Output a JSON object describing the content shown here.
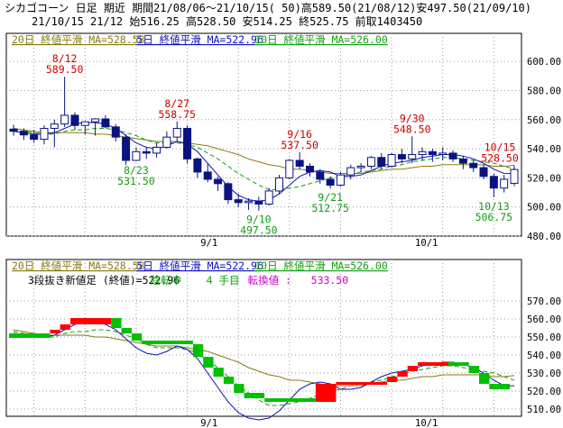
{
  "header": {
    "line1": "シカゴコーン 日足 期近 期間21/08/06～21/10/15( 50)高589.50(21/08/12)安497.50(21/09/10)",
    "line2": "21/10/15 21/12 始516.25 高528.50 安514.25 終525.75 前取1403450"
  },
  "colors": {
    "up_candle": "#ffffff",
    "down_candle": "#0a1480",
    "ma20": "#8a7a10",
    "ma5": "#1010c0",
    "ma10": "#10a010",
    "high_label": "#cc0000",
    "low_label": "#10a010",
    "brick_up": "#ff0000",
    "brick_down": "#00c000",
    "grid": "#9a9a9a",
    "legend_turn": "#cc00cc"
  },
  "chart_data": [
    {
      "type": "candlestick",
      "legend": [
        {
          "text": "20日 終値平滑 MA=528.58",
          "color": "#8a7a10"
        },
        {
          "text": "5日 終値平滑 MA=522.96",
          "color": "#1010c0"
        },
        {
          "text": "10日 終値平滑 MA=526.00",
          "color": "#10a010"
        }
      ],
      "ylim": [
        480,
        610
      ],
      "yticks": [
        "480.00",
        "500.00",
        "520.00",
        "540.00",
        "560.00",
        "580.00",
        "600.00"
      ],
      "ytick_values": [
        480,
        500,
        520,
        540,
        560,
        580,
        600
      ],
      "xticks": [
        {
          "index": 19,
          "label": "9/1"
        },
        {
          "index": 40,
          "label": "10/1"
        }
      ],
      "candles": [
        [
          553.5,
          556.5,
          549.0,
          552.0
        ],
        [
          552.0,
          554.0,
          546.0,
          549.5
        ],
        [
          549.5,
          553.0,
          544.0,
          546.5
        ],
        [
          546.5,
          556.0,
          543.0,
          554.0
        ],
        [
          554.0,
          560.0,
          541.0,
          557.0
        ],
        [
          557.0,
          589.5,
          555.0,
          563.0
        ],
        [
          563.0,
          565.0,
          553.0,
          556.0
        ],
        [
          556.0,
          559.0,
          550.0,
          558.5
        ],
        [
          558.5,
          561.0,
          549.0,
          560.5
        ],
        [
          560.5,
          563.0,
          554.0,
          555.0
        ],
        [
          555.0,
          557.0,
          545.0,
          548.0
        ],
        [
          548.0,
          550.0,
          529.0,
          532.0
        ],
        [
          532.0,
          541.0,
          531.5,
          538.0
        ],
        [
          538.0,
          541.0,
          533.0,
          537.0
        ],
        [
          537.0,
          544.0,
          534.0,
          541.0
        ],
        [
          541.0,
          552.0,
          540.0,
          548.0
        ],
        [
          548.0,
          558.75,
          545.0,
          554.0
        ],
        [
          554.0,
          556.0,
          530.0,
          533.0
        ],
        [
          533.0,
          534.0,
          520.0,
          524.0
        ],
        [
          524.0,
          530.0,
          517.0,
          519.0
        ],
        [
          519.0,
          521.0,
          511.0,
          516.0
        ],
        [
          516.0,
          517.0,
          502.0,
          505.0
        ],
        [
          505.0,
          509.0,
          500.0,
          503.0
        ],
        [
          503.0,
          506.0,
          498.0,
          504.0
        ],
        [
          504.0,
          507.0,
          497.5,
          502.0
        ],
        [
          502.0,
          513.0,
          501.0,
          511.0
        ],
        [
          511.0,
          522.0,
          509.0,
          520.0
        ],
        [
          520.0,
          533.0,
          519.0,
          532.0
        ],
        [
          532.0,
          537.5,
          526.0,
          528.0
        ],
        [
          528.0,
          530.0,
          521.0,
          524.0
        ],
        [
          524.0,
          526.0,
          516.0,
          519.0
        ],
        [
          519.0,
          521.0,
          512.75,
          515.0
        ],
        [
          515.0,
          524.0,
          514.0,
          522.0
        ],
        [
          522.0,
          529.0,
          519.0,
          527.0
        ],
        [
          527.0,
          530.0,
          524.0,
          528.0
        ],
        [
          528.0,
          535.0,
          526.0,
          534.0
        ],
        [
          534.0,
          537.0,
          526.0,
          528.0
        ],
        [
          528.0,
          537.0,
          527.0,
          536.0
        ],
        [
          536.0,
          540.0,
          530.0,
          533.0
        ],
        [
          533.0,
          548.5,
          530.0,
          536.0
        ],
        [
          536.0,
          541.0,
          532.0,
          538.0
        ],
        [
          538.0,
          540.0,
          531.0,
          536.0
        ],
        [
          536.0,
          541.0,
          532.0,
          537.0
        ],
        [
          537.0,
          539.0,
          531.0,
          533.0
        ],
        [
          533.0,
          535.0,
          526.0,
          530.0
        ],
        [
          530.0,
          532.0,
          524.0,
          527.0
        ],
        [
          527.0,
          529.0,
          519.0,
          521.0
        ],
        [
          521.0,
          523.0,
          506.75,
          513.0
        ],
        [
          513.0,
          522.0,
          510.0,
          519.0
        ],
        [
          516.25,
          528.5,
          514.25,
          525.75
        ]
      ],
      "ma20": [
        554,
        553,
        552,
        551,
        551,
        551,
        551,
        551,
        550,
        550,
        549,
        548,
        547,
        546,
        545,
        545,
        545,
        544,
        543,
        542,
        540,
        538,
        536,
        533,
        531,
        529,
        528,
        526,
        526,
        525,
        524,
        523,
        523,
        523,
        523,
        524,
        525,
        526,
        526,
        527,
        528,
        528,
        529,
        529,
        529,
        529,
        529,
        528,
        528,
        528.58
      ],
      "ma5": [
        552,
        551,
        550,
        550,
        551,
        554,
        557,
        558,
        558,
        557,
        554,
        549,
        544,
        541,
        540,
        542,
        545,
        543,
        538,
        530,
        522,
        514,
        508,
        505,
        504,
        505,
        509,
        515,
        521,
        524,
        525,
        524,
        521,
        521,
        522,
        525,
        528,
        530,
        531,
        532,
        534,
        535,
        536,
        536,
        535,
        533,
        530,
        526,
        523,
        522.96
      ],
      "ma10": [
        553,
        552,
        551,
        550,
        550,
        552,
        553,
        553,
        554,
        554,
        553,
        551,
        549,
        546,
        544,
        544,
        544,
        543,
        541,
        537,
        533,
        528,
        523,
        519,
        515,
        512,
        512,
        513,
        514,
        516,
        518,
        520,
        521,
        523,
        524,
        525,
        526,
        528,
        529,
        531,
        532,
        533,
        534,
        534,
        533,
        532,
        531,
        530,
        528,
        526.0
      ],
      "annotations": [
        {
          "index": 5,
          "date": "8/12",
          "value": "589.50",
          "kind": "high"
        },
        {
          "index": 16,
          "date": "8/27",
          "value": "558.75",
          "kind": "high"
        },
        {
          "index": 12,
          "date": "8/23",
          "value": "531.50",
          "kind": "low"
        },
        {
          "index": 24,
          "date": "9/10",
          "value": "497.50",
          "kind": "low"
        },
        {
          "index": 28,
          "date": "9/16",
          "value": "537.50",
          "kind": "high"
        },
        {
          "index": 31,
          "date": "9/21",
          "value": "512.75",
          "kind": "low"
        },
        {
          "index": 39,
          "date": "9/30",
          "value": "548.50",
          "kind": "high"
        },
        {
          "index": 47,
          "date": "10/13",
          "value": "506.75",
          "kind": "low"
        },
        {
          "index": 49,
          "date": "10/15",
          "value": "528.50",
          "kind": "high"
        }
      ]
    },
    {
      "type": "three-line-break",
      "legend": [
        {
          "text": "20日 終値平滑 MA=528.58",
          "color": "#8a7a10"
        },
        {
          "text": "5日 終値平滑 MA=522.96",
          "color": "#1010c0"
        },
        {
          "text": "10日 終値平滑 MA=526.00",
          "color": "#10a010"
        }
      ],
      "status": {
        "title": "3段抜き新値足 (終値)=522.96",
        "state": "陰転中",
        "count": "4 手目",
        "turn_label": "転換値 :",
        "turn_value": "533.50"
      },
      "ylim": [
        506,
        578
      ],
      "yticks": [
        "510.00",
        "520.00",
        "530.00",
        "540.00",
        "550.00",
        "560.00",
        "570.00"
      ],
      "ytick_values": [
        510,
        520,
        530,
        540,
        550,
        560,
        570
      ],
      "xticks": [
        {
          "index": 19,
          "label": "9/1"
        },
        {
          "index": 40,
          "label": "10/1"
        }
      ],
      "bricks": [
        {
          "from": 0,
          "to": 4,
          "low": 549.5,
          "high": 552.0,
          "dir": "down"
        },
        {
          "from": 4,
          "to": 5,
          "low": 552.0,
          "high": 554.0,
          "dir": "up"
        },
        {
          "from": 5,
          "to": 6,
          "low": 554.0,
          "high": 557.0,
          "dir": "up"
        },
        {
          "from": 6,
          "to": 10,
          "low": 557.0,
          "high": 560.5,
          "dir": "up"
        },
        {
          "from": 10,
          "to": 11,
          "low": 555.0,
          "high": 560.5,
          "dir": "down"
        },
        {
          "from": 11,
          "to": 12,
          "low": 552.0,
          "high": 555.0,
          "dir": "down"
        },
        {
          "from": 12,
          "to": 13,
          "low": 548.0,
          "high": 552.0,
          "dir": "down"
        },
        {
          "from": 13,
          "to": 18,
          "low": 546.0,
          "high": 548.0,
          "dir": "down"
        },
        {
          "from": 18,
          "to": 19,
          "low": 539.0,
          "high": 546.0,
          "dir": "down"
        },
        {
          "from": 19,
          "to": 20,
          "low": 533.0,
          "high": 539.0,
          "dir": "down"
        },
        {
          "from": 20,
          "to": 21,
          "low": 528.0,
          "high": 533.0,
          "dir": "down"
        },
        {
          "from": 21,
          "to": 22,
          "low": 524.0,
          "high": 528.0,
          "dir": "down"
        },
        {
          "from": 22,
          "to": 23,
          "low": 519.0,
          "high": 524.0,
          "dir": "down"
        },
        {
          "from": 23,
          "to": 25,
          "low": 516.0,
          "high": 519.0,
          "dir": "down"
        },
        {
          "from": 25,
          "to": 30,
          "low": 514.0,
          "high": 516.0,
          "dir": "down"
        },
        {
          "from": 30,
          "to": 32,
          "low": 514.0,
          "high": 524.0,
          "dir": "up"
        },
        {
          "from": 32,
          "to": 37,
          "low": 524.0,
          "high": 525.0,
          "dir": "up"
        },
        {
          "from": 37,
          "to": 38,
          "low": 525.0,
          "high": 528.0,
          "dir": "up"
        },
        {
          "from": 38,
          "to": 39,
          "low": 528.0,
          "high": 531.0,
          "dir": "up"
        },
        {
          "from": 39,
          "to": 40,
          "low": 531.0,
          "high": 534.0,
          "dir": "up"
        },
        {
          "from": 40,
          "to": 43,
          "low": 534.0,
          "high": 536.0,
          "dir": "up"
        },
        {
          "from": 43,
          "to": 45,
          "low": 534.0,
          "high": 536.0,
          "dir": "down"
        },
        {
          "from": 45,
          "to": 46,
          "low": 530.0,
          "high": 534.0,
          "dir": "down"
        },
        {
          "from": 46,
          "to": 47,
          "low": 524.0,
          "high": 530.0,
          "dir": "down"
        },
        {
          "from": 47,
          "to": 49,
          "low": 521.0,
          "high": 524.0,
          "dir": "down"
        }
      ]
    }
  ]
}
